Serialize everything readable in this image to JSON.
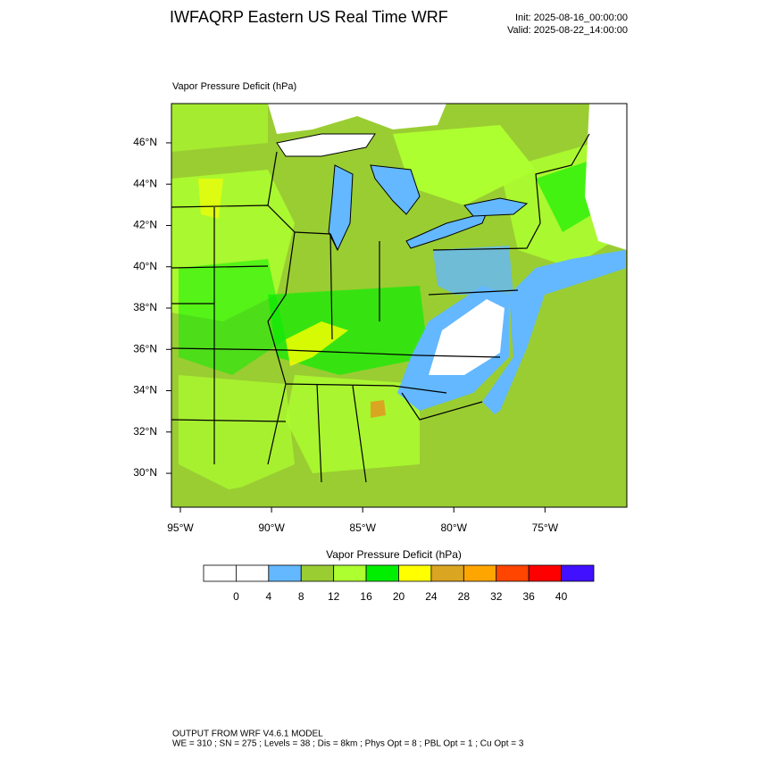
{
  "header": {
    "title": "IWFAQRP Eastern US Real Time WRF",
    "init": "Init: 2025-08-16_00:00:00",
    "valid": "Valid: 2025-08-22_14:00:00"
  },
  "map": {
    "label": "Vapor Pressure Deficit   (hPa)",
    "xlim": [
      -95.49,
      -70.51
    ],
    "ylim": [
      28.36,
      47.9
    ],
    "xticks": [
      {
        "value": -95,
        "label": "95°W"
      },
      {
        "value": -90,
        "label": "90°W"
      },
      {
        "value": -85,
        "label": "85°W"
      },
      {
        "value": -80,
        "label": "80°W"
      },
      {
        "value": -75,
        "label": "75°W"
      }
    ],
    "yticks": [
      {
        "value": 30,
        "label": "30°N"
      },
      {
        "value": 32,
        "label": "32°N"
      },
      {
        "value": 34,
        "label": "34°N"
      },
      {
        "value": 36,
        "label": "36°N"
      },
      {
        "value": 38,
        "label": "38°N"
      },
      {
        "value": 40,
        "label": "40°N"
      },
      {
        "value": 42,
        "label": "42°N"
      },
      {
        "value": 44,
        "label": "44°N"
      },
      {
        "value": 46,
        "label": "46°N"
      }
    ]
  },
  "colorbar": {
    "title": "Vapor Pressure Deficit  (hPa)",
    "colors": [
      "#ffffff",
      "#ffffff",
      "#63b8ff",
      "#9acd32",
      "#adff2f",
      "#00ee00",
      "#ffff00",
      "#daa520",
      "#ffa500",
      "#ff4500",
      "#ff0000",
      "#4010ff"
    ],
    "levels": [
      0,
      4,
      8,
      12,
      16,
      20,
      24,
      28,
      32,
      36,
      40
    ]
  },
  "footer": {
    "line1": "OUTPUT FROM WRF V4.6.1 MODEL",
    "line2": "WE = 310 ; SN = 275 ; Levels = 38 ; Dis = 8km ; Phys Opt = 8 ; PBL Opt = 1 ; Cu Opt = 3"
  }
}
